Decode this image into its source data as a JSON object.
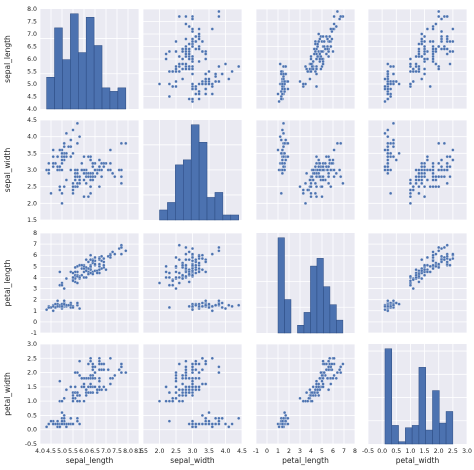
{
  "chart_data": {
    "type": "scatter",
    "kind": "pairplot",
    "variables": [
      "sepal_length",
      "sepal_width",
      "petal_length",
      "petal_width"
    ],
    "diag_kind": "hist",
    "grid": true,
    "style": {
      "panel_bg": "#eaeaf2",
      "grid_color": "#ffffff",
      "mark_color": "#4c72b0",
      "edge_color": "#2b4a80"
    },
    "axes": {
      "sepal_length": {
        "range": [
          4.0,
          8.5
        ],
        "ticks": [
          "4.0",
          "4.5",
          "5.0",
          "5.5",
          "6.0",
          "6.5",
          "7.0",
          "7.5",
          "8.0",
          "8.5"
        ]
      },
      "sepal_width": {
        "range": [
          1.5,
          4.5
        ],
        "ticks": [
          "1.5",
          "2.0",
          "2.5",
          "3.0",
          "3.5",
          "4.0",
          "4.5"
        ]
      },
      "petal_length": {
        "range": [
          -1,
          8
        ],
        "ticks": [
          "-1",
          "0",
          "1",
          "2",
          "3",
          "4",
          "5",
          "6",
          "7",
          "8"
        ]
      },
      "petal_width": {
        "range": [
          -0.5,
          3.0
        ],
        "ticks": [
          "-0.5",
          "0.0",
          "0.5",
          "1.0",
          "1.5",
          "2.0",
          "2.5",
          "3.0"
        ]
      }
    },
    "y_axes": {
      "sepal_length": {
        "range": [
          4.0,
          8.0
        ],
        "ticks": [
          "4.0",
          "4.5",
          "5.0",
          "5.5",
          "6.0",
          "6.5",
          "7.0",
          "7.5",
          "8.0"
        ]
      },
      "sepal_width": {
        "range": [
          1.5,
          4.5
        ],
        "ticks": [
          "1.5",
          "2.0",
          "2.5",
          "3.0",
          "3.5",
          "4.0",
          "4.5"
        ]
      },
      "petal_length": {
        "range": [
          -1,
          8
        ],
        "ticks": [
          "-1",
          "0",
          "1",
          "2",
          "3",
          "4",
          "5",
          "6",
          "7",
          "8"
        ]
      },
      "petal_width": {
        "range": [
          -0.5,
          3.0
        ],
        "ticks": [
          "-0.5",
          "0.0",
          "0.5",
          "1.0",
          "1.5",
          "2.0",
          "2.5",
          "3.0"
        ]
      }
    },
    "histograms": {
      "sepal_length": {
        "bin_edges": [
          4.3,
          4.66,
          5.02,
          5.38,
          5.74,
          6.1,
          6.46,
          6.82,
          7.18,
          7.54,
          7.9
        ],
        "counts": [
          9,
          23,
          14,
          27,
          16,
          26,
          18,
          6,
          5,
          6
        ]
      },
      "sepal_width": {
        "bin_edges": [
          2.0,
          2.24,
          2.48,
          2.72,
          2.96,
          3.2,
          3.44,
          3.68,
          3.92,
          4.16,
          4.4
        ],
        "counts": [
          4,
          7,
          22,
          24,
          38,
          31,
          9,
          11,
          2,
          2
        ]
      },
      "petal_length": {
        "bin_edges": [
          1.0,
          1.59,
          2.18,
          2.77,
          3.36,
          3.95,
          4.54,
          5.13,
          5.72,
          6.31,
          6.9
        ],
        "counts": [
          37,
          13,
          0,
          3,
          8,
          26,
          29,
          18,
          11,
          5
        ]
      },
      "petal_width": {
        "bin_edges": [
          0.1,
          0.34,
          0.58,
          0.82,
          1.06,
          1.3,
          1.54,
          1.78,
          2.02,
          2.26,
          2.5
        ],
        "counts": [
          41,
          8,
          1,
          7,
          8,
          33,
          6,
          23,
          9,
          14
        ]
      }
    },
    "points": {
      "sepal_length": [
        5.1,
        4.9,
        4.7,
        4.6,
        5.0,
        5.4,
        4.6,
        5.0,
        4.4,
        4.9,
        5.4,
        4.8,
        4.8,
        4.3,
        5.8,
        5.7,
        5.4,
        5.1,
        5.7,
        5.1,
        5.4,
        5.1,
        4.6,
        5.1,
        4.8,
        5.0,
        5.0,
        5.2,
        5.2,
        4.7,
        4.8,
        5.4,
        5.2,
        5.5,
        4.9,
        5.0,
        5.5,
        4.9,
        4.4,
        5.1,
        5.0,
        4.5,
        4.4,
        5.0,
        5.1,
        4.8,
        5.1,
        4.6,
        5.3,
        5.0,
        7.0,
        6.4,
        6.9,
        5.5,
        6.5,
        5.7,
        6.3,
        4.9,
        6.6,
        5.2,
        5.0,
        5.9,
        6.0,
        6.1,
        5.6,
        6.7,
        5.6,
        5.8,
        6.2,
        5.6,
        5.9,
        6.1,
        6.3,
        6.1,
        6.4,
        6.6,
        6.8,
        6.7,
        6.0,
        5.7,
        5.5,
        5.5,
        5.8,
        6.0,
        5.4,
        6.0,
        6.7,
        6.3,
        5.6,
        5.5,
        5.5,
        6.1,
        5.8,
        5.0,
        5.6,
        5.7,
        5.7,
        6.2,
        5.1,
        5.7,
        6.3,
        5.8,
        7.1,
        6.3,
        6.5,
        7.6,
        4.9,
        7.3,
        6.7,
        7.2,
        6.5,
        6.4,
        6.8,
        5.7,
        5.8,
        6.4,
        6.5,
        7.7,
        7.7,
        6.0,
        6.9,
        5.6,
        7.7,
        6.3,
        6.7,
        7.2,
        6.2,
        6.1,
        6.4,
        7.2,
        7.4,
        7.9,
        6.4,
        6.3,
        6.1,
        7.7,
        6.3,
        6.4,
        6.0,
        6.9,
        6.7,
        6.9,
        5.8,
        6.8,
        6.7,
        6.7,
        6.3,
        6.5,
        6.2,
        5.9
      ],
      "sepal_width": [
        3.5,
        3.0,
        3.2,
        3.1,
        3.6,
        3.9,
        3.4,
        3.4,
        2.9,
        3.1,
        3.7,
        3.4,
        3.0,
        3.0,
        4.0,
        4.4,
        3.9,
        3.5,
        3.8,
        3.8,
        3.4,
        3.7,
        3.6,
        3.3,
        3.4,
        3.0,
        3.4,
        3.5,
        3.4,
        3.2,
        3.1,
        3.4,
        4.1,
        4.2,
        3.1,
        3.2,
        3.5,
        3.6,
        3.0,
        3.4,
        3.5,
        2.3,
        3.2,
        3.5,
        3.8,
        3.0,
        3.8,
        3.2,
        3.7,
        3.3,
        3.2,
        3.2,
        3.1,
        2.3,
        2.8,
        2.8,
        3.3,
        2.4,
        2.9,
        2.7,
        2.0,
        3.0,
        2.2,
        2.9,
        2.9,
        3.1,
        3.0,
        2.7,
        2.2,
        2.5,
        3.2,
        2.8,
        2.5,
        2.8,
        2.9,
        3.0,
        2.8,
        3.0,
        2.9,
        2.6,
        2.4,
        2.4,
        2.7,
        2.7,
        3.0,
        3.4,
        3.1,
        2.3,
        3.0,
        2.5,
        2.6,
        3.0,
        2.6,
        2.3,
        2.7,
        3.0,
        2.9,
        2.9,
        2.5,
        2.8,
        3.3,
        2.7,
        3.0,
        2.9,
        3.0,
        3.0,
        2.5,
        2.9,
        2.5,
        3.6,
        3.2,
        2.7,
        3.0,
        2.5,
        2.8,
        3.2,
        3.0,
        3.8,
        2.6,
        2.2,
        3.2,
        2.8,
        2.8,
        2.7,
        3.3,
        3.2,
        2.8,
        3.0,
        2.8,
        3.0,
        2.8,
        3.8,
        2.8,
        2.8,
        2.6,
        3.0,
        3.4,
        3.1,
        3.0,
        3.1,
        3.1,
        3.1,
        2.7,
        3.2,
        3.3,
        3.0,
        2.5,
        3.0,
        3.4,
        3.0
      ],
      "petal_length": [
        1.4,
        1.4,
        1.3,
        1.5,
        1.4,
        1.7,
        1.4,
        1.5,
        1.4,
        1.5,
        1.5,
        1.6,
        1.4,
        1.1,
        1.2,
        1.5,
        1.3,
        1.4,
        1.7,
        1.5,
        1.7,
        1.5,
        1.0,
        1.7,
        1.9,
        1.6,
        1.6,
        1.5,
        1.4,
        1.6,
        1.6,
        1.5,
        1.5,
        1.4,
        1.5,
        1.2,
        1.3,
        1.4,
        1.3,
        1.5,
        1.3,
        1.3,
        1.3,
        1.6,
        1.9,
        1.4,
        1.6,
        1.4,
        1.5,
        1.4,
        4.7,
        4.5,
        4.9,
        4.0,
        4.6,
        4.5,
        4.7,
        3.3,
        4.6,
        3.9,
        3.5,
        4.2,
        4.0,
        4.7,
        3.6,
        4.4,
        4.5,
        4.1,
        4.5,
        3.9,
        4.8,
        4.0,
        4.9,
        4.7,
        4.3,
        4.4,
        4.8,
        5.0,
        4.5,
        3.5,
        3.8,
        3.7,
        3.9,
        5.1,
        4.5,
        4.5,
        4.7,
        4.4,
        4.1,
        4.0,
        4.4,
        4.6,
        4.0,
        3.3,
        4.2,
        4.2,
        4.2,
        4.3,
        3.0,
        4.1,
        6.0,
        5.1,
        5.9,
        5.6,
        5.8,
        6.6,
        4.5,
        6.3,
        5.8,
        6.1,
        5.1,
        5.3,
        5.5,
        5.0,
        5.1,
        5.3,
        5.5,
        6.7,
        6.9,
        5.0,
        5.7,
        4.9,
        6.7,
        4.9,
        5.7,
        6.0,
        4.8,
        4.9,
        5.6,
        5.8,
        6.1,
        6.4,
        5.6,
        5.1,
        5.6,
        6.1,
        5.6,
        5.5,
        4.8,
        5.4,
        5.6,
        5.1,
        5.1,
        5.9,
        5.7,
        5.2,
        5.0,
        5.2,
        5.4,
        5.1
      ],
      "petal_width": [
        0.2,
        0.2,
        0.2,
        0.2,
        0.2,
        0.4,
        0.3,
        0.2,
        0.2,
        0.1,
        0.2,
        0.2,
        0.1,
        0.1,
        0.2,
        0.4,
        0.4,
        0.3,
        0.3,
        0.3,
        0.2,
        0.4,
        0.2,
        0.5,
        0.2,
        0.2,
        0.4,
        0.2,
        0.2,
        0.2,
        0.2,
        0.4,
        0.1,
        0.2,
        0.1,
        0.2,
        0.2,
        0.1,
        0.2,
        0.2,
        0.3,
        0.3,
        0.2,
        0.6,
        0.4,
        0.3,
        0.2,
        0.2,
        0.2,
        0.2,
        1.4,
        1.5,
        1.5,
        1.3,
        1.5,
        1.3,
        1.6,
        1.0,
        1.3,
        1.4,
        1.0,
        1.5,
        1.0,
        1.4,
        1.3,
        1.4,
        1.5,
        1.0,
        1.5,
        1.1,
        1.8,
        1.3,
        1.5,
        1.2,
        1.3,
        1.4,
        1.4,
        1.7,
        1.5,
        1.0,
        1.1,
        1.0,
        1.2,
        1.6,
        1.5,
        1.6,
        1.5,
        1.3,
        1.3,
        1.3,
        1.2,
        1.4,
        1.2,
        1.0,
        1.3,
        1.2,
        1.3,
        1.3,
        1.1,
        1.3,
        2.5,
        1.9,
        2.1,
        1.8,
        2.2,
        2.1,
        1.7,
        1.8,
        1.8,
        2.5,
        2.0,
        1.9,
        2.1,
        2.0,
        2.4,
        2.3,
        1.8,
        2.2,
        2.3,
        1.5,
        2.3,
        2.0,
        2.0,
        1.8,
        2.1,
        1.8,
        1.8,
        1.8,
        2.1,
        1.6,
        1.9,
        2.0,
        2.2,
        1.5,
        1.4,
        2.3,
        2.4,
        1.8,
        1.8,
        2.1,
        2.4,
        2.3,
        1.9,
        2.3,
        2.5,
        2.3,
        1.9,
        2.0,
        2.3,
        1.8
      ]
    }
  }
}
